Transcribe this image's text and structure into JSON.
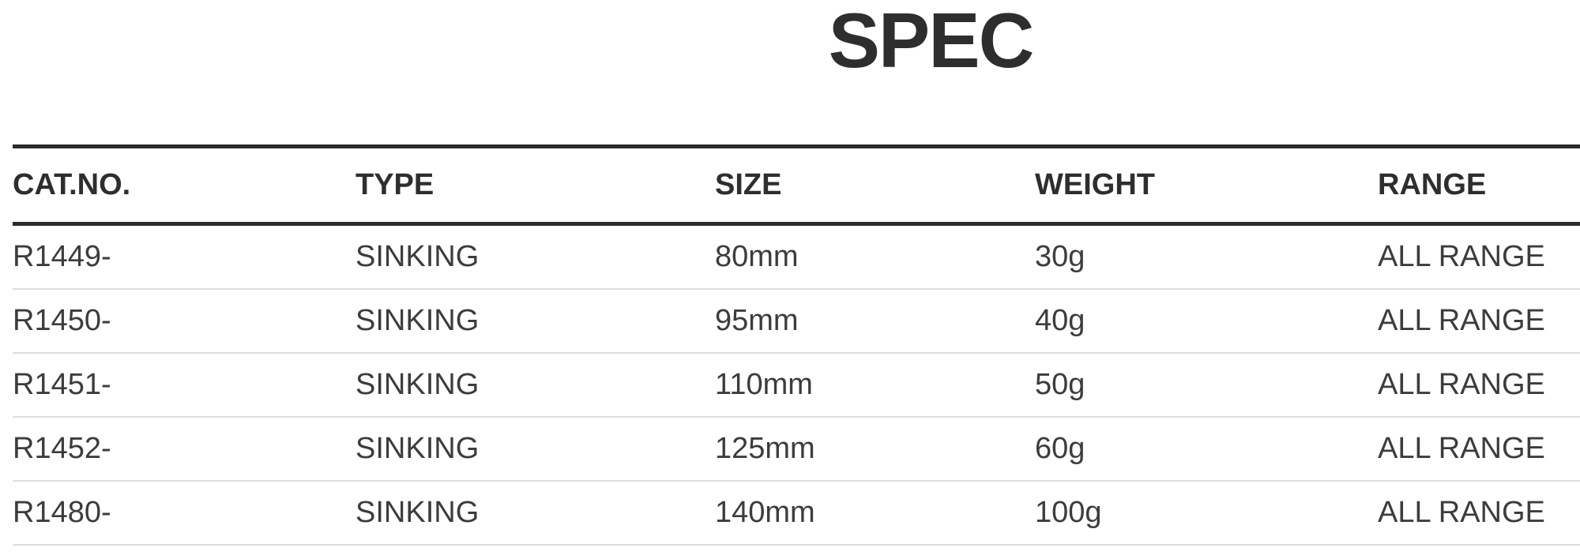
{
  "page": {
    "title": "SPEC"
  },
  "colors": {
    "background": "#ffffff",
    "text": "#3c3c3c",
    "heading_text": "#2e2e2e",
    "border_dark": "#2b2b2b",
    "border_light": "#dcdcdc"
  },
  "spec_table": {
    "columns": [
      {
        "label": "CAT.NO."
      },
      {
        "label": "TYPE"
      },
      {
        "label": "SIZE"
      },
      {
        "label": "WEIGHT"
      },
      {
        "label": "RANGE"
      }
    ],
    "rows": [
      {
        "cat_no": "R1449-",
        "type": "SINKING",
        "size": "80mm",
        "weight": "30g",
        "range": "ALL RANGE"
      },
      {
        "cat_no": "R1450-",
        "type": "SINKING",
        "size": "95mm",
        "weight": "40g",
        "range": "ALL RANGE"
      },
      {
        "cat_no": "R1451-",
        "type": "SINKING",
        "size": "110mm",
        "weight": "50g",
        "range": "ALL RANGE"
      },
      {
        "cat_no": "R1452-",
        "type": "SINKING",
        "size": "125mm",
        "weight": "60g",
        "range": "ALL RANGE"
      },
      {
        "cat_no": "R1480-",
        "type": "SINKING",
        "size": "140mm",
        "weight": "100g",
        "range": "ALL RANGE"
      }
    ]
  }
}
